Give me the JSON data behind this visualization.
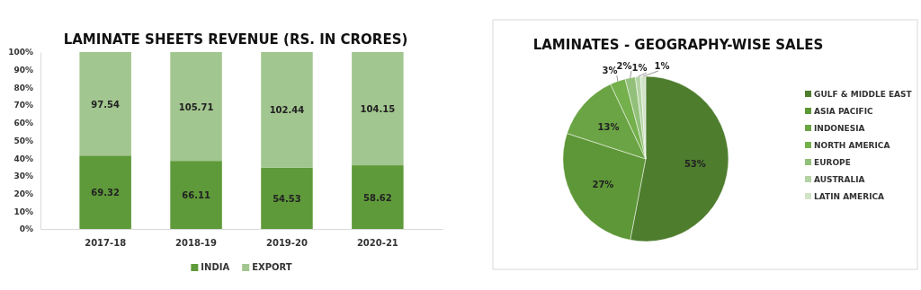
{
  "chart_data": [
    {
      "type": "bar",
      "title": "LAMINATE SHEETS REVENUE (RS. IN CRORES)",
      "categories": [
        "2017-18",
        "2018-19",
        "2019-20",
        "2020-21"
      ],
      "stacked": true,
      "series": [
        {
          "name": "INDIA",
          "color": "#5f9a3a",
          "values": [
            41.5,
            38.5,
            34.7,
            36.0
          ]
        },
        {
          "name": "EXPORT",
          "color": "#a2c68f",
          "values": [
            58.5,
            61.5,
            65.3,
            64.0
          ]
        }
      ],
      "annotations": [
        "69.32",
        "66.11",
        "54.53",
        "58.62",
        "97.54",
        "105.71",
        "102.44",
        "104.15"
      ],
      "ylim": [
        0,
        100
      ],
      "yticks": [
        {
          "value": 0,
          "label": "0%"
        },
        {
          "value": 10,
          "label": "10%"
        },
        {
          "value": 20,
          "label": "20%"
        },
        {
          "value": 30,
          "label": "30%"
        },
        {
          "value": 40,
          "label": "40%"
        },
        {
          "value": 50,
          "label": "50%"
        },
        {
          "value": 60,
          "label": "60%"
        },
        {
          "value": 70,
          "label": "70%"
        },
        {
          "value": 80,
          "label": "80%"
        },
        {
          "value": 90,
          "label": "90%"
        },
        {
          "value": 100,
          "label": "100%"
        }
      ],
      "grid": false,
      "legend": "bottom"
    },
    {
      "type": "pie",
      "title": "LAMINATES - GEOGRAPHY-WISE SALES",
      "categories": [
        "GULF & MIDDLE EAST",
        "ASIA PACIFIC",
        "INDONESIA",
        "NORTH AMERICA",
        "EUROPE",
        "AUSTRALIA",
        "LATIN AMERICA"
      ],
      "values": [
        53,
        27,
        13,
        3,
        2,
        1,
        1
      ],
      "value_labels": [
        "53%",
        "27%",
        "13%",
        "3%",
        "2%",
        "1%",
        "1%"
      ],
      "colors": [
        "#4e7d2e",
        "#5e9737",
        "#6aa444",
        "#74b04c",
        "#92c07a",
        "#b3d3a3",
        "#d2e4c8"
      ],
      "legend": "right"
    }
  ]
}
